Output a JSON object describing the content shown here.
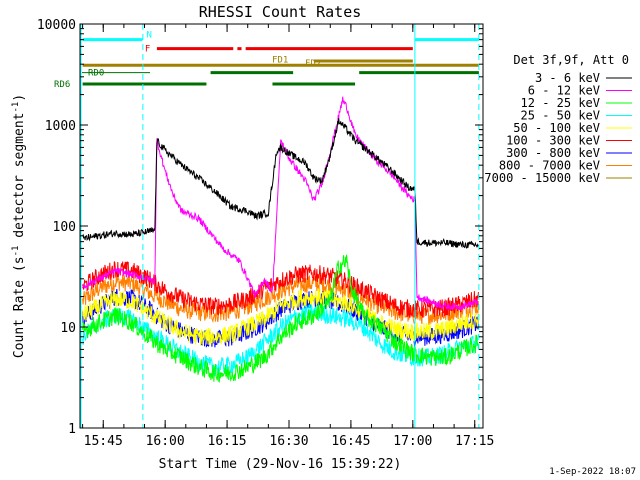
{
  "chart_data": {
    "type": "line",
    "title": "RHESSI Count Rates",
    "xlabel": "Start Time (29-Nov-16 15:39:22)",
    "ylabel_main": "Count Rate (s",
    "ylabel_sup1": "-1",
    "ylabel_mid": " detector segment",
    "ylabel_sup2": "-1",
    "ylabel_end": ")",
    "footer": "1-Sep-2022 18:07",
    "x_range_min": [
      39.37,
      137
    ],
    "ylim": [
      1,
      10000
    ],
    "y_scale": "log",
    "x_ticks": [
      {
        "min": 45,
        "label": "15:45"
      },
      {
        "min": 60,
        "label": "16:00"
      },
      {
        "min": 75,
        "label": "16:15"
      },
      {
        "min": 90,
        "label": "16:30"
      },
      {
        "min": 105,
        "label": "16:45"
      },
      {
        "min": 120,
        "label": "17:00"
      },
      {
        "min": 135,
        "label": "17:15"
      }
    ],
    "y_ticks": [
      {
        "v": 1,
        "label": "1"
      },
      {
        "v": 10,
        "label": "10"
      },
      {
        "v": 100,
        "label": "100"
      },
      {
        "v": 1000,
        "label": "1000"
      },
      {
        "v": 10000,
        "label": "10000"
      }
    ],
    "legend_title": "Det 3f,9f, Att 0",
    "legend_placement": "right",
    "series": [
      {
        "name": "3 - 6 keV",
        "color": "#000000",
        "points": [
          [
            40,
            75
          ],
          [
            44,
            80
          ],
          [
            48,
            85
          ],
          [
            52,
            82
          ],
          [
            56,
            88
          ],
          [
            57.5,
            90
          ],
          [
            58,
            700
          ],
          [
            60,
            560
          ],
          [
            64,
            400
          ],
          [
            68,
            300
          ],
          [
            72,
            220
          ],
          [
            76,
            155
          ],
          [
            80,
            140
          ],
          [
            82,
            125
          ],
          [
            85,
            135
          ],
          [
            87,
            550
          ],
          [
            88,
            600
          ],
          [
            90,
            520
          ],
          [
            94,
            420
          ],
          [
            96,
            300
          ],
          [
            98,
            280
          ],
          [
            100,
            500
          ],
          [
            102,
            1100
          ],
          [
            104,
            900
          ],
          [
            106,
            700
          ],
          [
            110,
            520
          ],
          [
            115,
            350
          ],
          [
            119,
            240
          ],
          [
            120.5,
            230
          ],
          [
            121,
            70
          ],
          [
            124,
            68
          ],
          [
            128,
            68
          ],
          [
            132,
            65
          ],
          [
            136,
            65
          ]
        ]
      },
      {
        "name": "6 - 12 keV",
        "color": "#ff00ff",
        "points": [
          [
            40,
            25
          ],
          [
            44,
            30
          ],
          [
            48,
            36
          ],
          [
            52,
            33
          ],
          [
            56,
            30
          ],
          [
            57.5,
            28
          ],
          [
            58,
            700
          ],
          [
            60,
            350
          ],
          [
            62,
            200
          ],
          [
            64,
            140
          ],
          [
            68,
            120
          ],
          [
            70,
            95
          ],
          [
            74,
            60
          ],
          [
            78,
            45
          ],
          [
            80,
            30
          ],
          [
            82,
            20
          ],
          [
            84,
            30
          ],
          [
            86,
            22
          ],
          [
            88,
            700
          ],
          [
            90,
            470
          ],
          [
            94,
            280
          ],
          [
            96,
            180
          ],
          [
            98,
            260
          ],
          [
            100,
            550
          ],
          [
            102,
            1200
          ],
          [
            103,
            1800
          ],
          [
            104,
            1500
          ],
          [
            106,
            800
          ],
          [
            110,
            500
          ],
          [
            115,
            320
          ],
          [
            119,
            200
          ],
          [
            120.5,
            180
          ],
          [
            121,
            20
          ],
          [
            124,
            18
          ],
          [
            128,
            16
          ],
          [
            132,
            16
          ],
          [
            136,
            18
          ]
        ]
      },
      {
        "name": "12 - 25 keV",
        "color": "#00ff00",
        "points": [
          [
            40,
            9
          ],
          [
            44,
            11
          ],
          [
            48,
            13
          ],
          [
            52,
            11
          ],
          [
            56,
            8
          ],
          [
            60,
            6
          ],
          [
            64,
            5
          ],
          [
            68,
            4
          ],
          [
            72,
            3.5
          ],
          [
            76,
            3.5
          ],
          [
            80,
            4
          ],
          [
            84,
            5
          ],
          [
            88,
            8
          ],
          [
            92,
            11
          ],
          [
            96,
            13
          ],
          [
            100,
            18
          ],
          [
            102,
            40
          ],
          [
            104,
            45
          ],
          [
            105,
            25
          ],
          [
            108,
            13
          ],
          [
            112,
            10
          ],
          [
            116,
            7
          ],
          [
            120,
            5.5
          ],
          [
            124,
            5
          ],
          [
            128,
            5
          ],
          [
            132,
            6
          ],
          [
            136,
            7
          ]
        ]
      },
      {
        "name": "25 - 50 keV",
        "color": "#00ffff",
        "points": [
          [
            40,
            8
          ],
          [
            44,
            11
          ],
          [
            48,
            13
          ],
          [
            52,
            12
          ],
          [
            56,
            9
          ],
          [
            60,
            7
          ],
          [
            64,
            5.5
          ],
          [
            68,
            4.5
          ],
          [
            72,
            4
          ],
          [
            76,
            4.2
          ],
          [
            80,
            5
          ],
          [
            84,
            7
          ],
          [
            88,
            10
          ],
          [
            92,
            13
          ],
          [
            96,
            14
          ],
          [
            100,
            13
          ],
          [
            104,
            12
          ],
          [
            108,
            10
          ],
          [
            112,
            7
          ],
          [
            116,
            5.5
          ],
          [
            120,
            5
          ],
          [
            124,
            5
          ],
          [
            128,
            5.5
          ],
          [
            132,
            6.5
          ],
          [
            136,
            7
          ]
        ]
      },
      {
        "name": "50 - 100 keV",
        "color": "#ffff00",
        "points": [
          [
            40,
            13
          ],
          [
            44,
            16
          ],
          [
            48,
            19
          ],
          [
            52,
            18
          ],
          [
            56,
            14
          ],
          [
            60,
            11
          ],
          [
            64,
            9
          ],
          [
            68,
            8
          ],
          [
            72,
            8
          ],
          [
            76,
            8.5
          ],
          [
            80,
            10
          ],
          [
            84,
            12
          ],
          [
            88,
            16
          ],
          [
            92,
            19
          ],
          [
            96,
            20
          ],
          [
            100,
            19
          ],
          [
            104,
            17
          ],
          [
            108,
            14
          ],
          [
            112,
            11
          ],
          [
            116,
            9.5
          ],
          [
            120,
            9
          ],
          [
            124,
            9
          ],
          [
            128,
            9.5
          ],
          [
            132,
            11
          ],
          [
            136,
            12
          ]
        ]
      },
      {
        "name": "100 - 300 keV",
        "color": "#ff0000",
        "points": [
          [
            40,
            25
          ],
          [
            44,
            32
          ],
          [
            48,
            38
          ],
          [
            52,
            36
          ],
          [
            56,
            30
          ],
          [
            60,
            23
          ],
          [
            64,
            19
          ],
          [
            68,
            17
          ],
          [
            72,
            16
          ],
          [
            76,
            17
          ],
          [
            80,
            19
          ],
          [
            84,
            24
          ],
          [
            88,
            29
          ],
          [
            92,
            33
          ],
          [
            96,
            34
          ],
          [
            100,
            32
          ],
          [
            104,
            28
          ],
          [
            108,
            23
          ],
          [
            112,
            19
          ],
          [
            116,
            16
          ],
          [
            120,
            15
          ],
          [
            124,
            15
          ],
          [
            128,
            15.5
          ],
          [
            132,
            17
          ],
          [
            136,
            19
          ]
        ]
      },
      {
        "name": "300 - 800 keV",
        "color": "#0000ff",
        "points": [
          [
            40,
            12
          ],
          [
            44,
            16
          ],
          [
            48,
            20
          ],
          [
            52,
            19
          ],
          [
            56,
            15
          ],
          [
            60,
            11
          ],
          [
            64,
            9
          ],
          [
            68,
            8
          ],
          [
            72,
            7.5
          ],
          [
            76,
            7.8
          ],
          [
            80,
            9
          ],
          [
            84,
            11
          ],
          [
            88,
            15
          ],
          [
            92,
            18
          ],
          [
            96,
            19
          ],
          [
            100,
            18
          ],
          [
            104,
            16
          ],
          [
            108,
            13
          ],
          [
            112,
            10
          ],
          [
            116,
            8.5
          ],
          [
            120,
            8
          ],
          [
            124,
            8
          ],
          [
            128,
            8.5
          ],
          [
            132,
            9.5
          ],
          [
            136,
            11
          ]
        ]
      },
      {
        "name": "800 - 7000 keV",
        "color": "#ff8000",
        "points": [
          [
            40,
            18
          ],
          [
            44,
            24
          ],
          [
            48,
            28
          ],
          [
            52,
            27
          ],
          [
            56,
            22
          ],
          [
            60,
            18
          ],
          [
            64,
            15
          ],
          [
            68,
            14
          ],
          [
            72,
            13.5
          ],
          [
            76,
            14
          ],
          [
            80,
            16
          ],
          [
            84,
            19
          ],
          [
            88,
            23
          ],
          [
            92,
            26
          ],
          [
            96,
            27
          ],
          [
            100,
            26
          ],
          [
            104,
            23
          ],
          [
            108,
            19
          ],
          [
            112,
            16
          ],
          [
            116,
            14
          ],
          [
            120,
            13
          ],
          [
            124,
            13
          ],
          [
            128,
            13.5
          ],
          [
            132,
            15
          ],
          [
            136,
            16
          ]
        ]
      },
      {
        "name": "7000 - 15000 keV",
        "color": "#a08000",
        "points": []
      }
    ],
    "flags": [
      {
        "label": "N",
        "color": "#00ffff",
        "segments": [
          [
            40,
            54.5
          ],
          [
            120.5,
            136
          ]
        ],
        "v": 7000
      },
      {
        "label": "F",
        "color": "#ee0000",
        "segments": [
          [
            58,
            76.5
          ],
          [
            77.5,
            78.5
          ],
          [
            79.5,
            120
          ]
        ],
        "v": 5700
      },
      {
        "label": "FD1",
        "color": "#a08000",
        "segments": [
          [
            40,
            136
          ]
        ],
        "v": 3900
      },
      {
        "label": "FD2",
        "color": "#a08000",
        "segments": [
          [
            96,
            120
          ]
        ],
        "v": 4300
      },
      {
        "label": "RD0",
        "color": "#007000",
        "segments": [
          [
            71,
            91
          ],
          [
            107,
            136
          ]
        ],
        "v": 3300
      },
      {
        "label": "RD6",
        "color": "#007000",
        "segments": [
          [
            40,
            70
          ],
          [
            86,
            106
          ]
        ],
        "v": 2550
      }
    ],
    "vertical_lines": [
      {
        "min": 39.6,
        "color": "#00ffff",
        "style": "solid"
      },
      {
        "min": 54.6,
        "color": "#00ffff",
        "style": "dashed"
      },
      {
        "min": 120.5,
        "color": "#00ffff",
        "style": "solid"
      },
      {
        "min": 136,
        "color": "#00ffff",
        "style": "dashed"
      }
    ],
    "grid": false
  }
}
